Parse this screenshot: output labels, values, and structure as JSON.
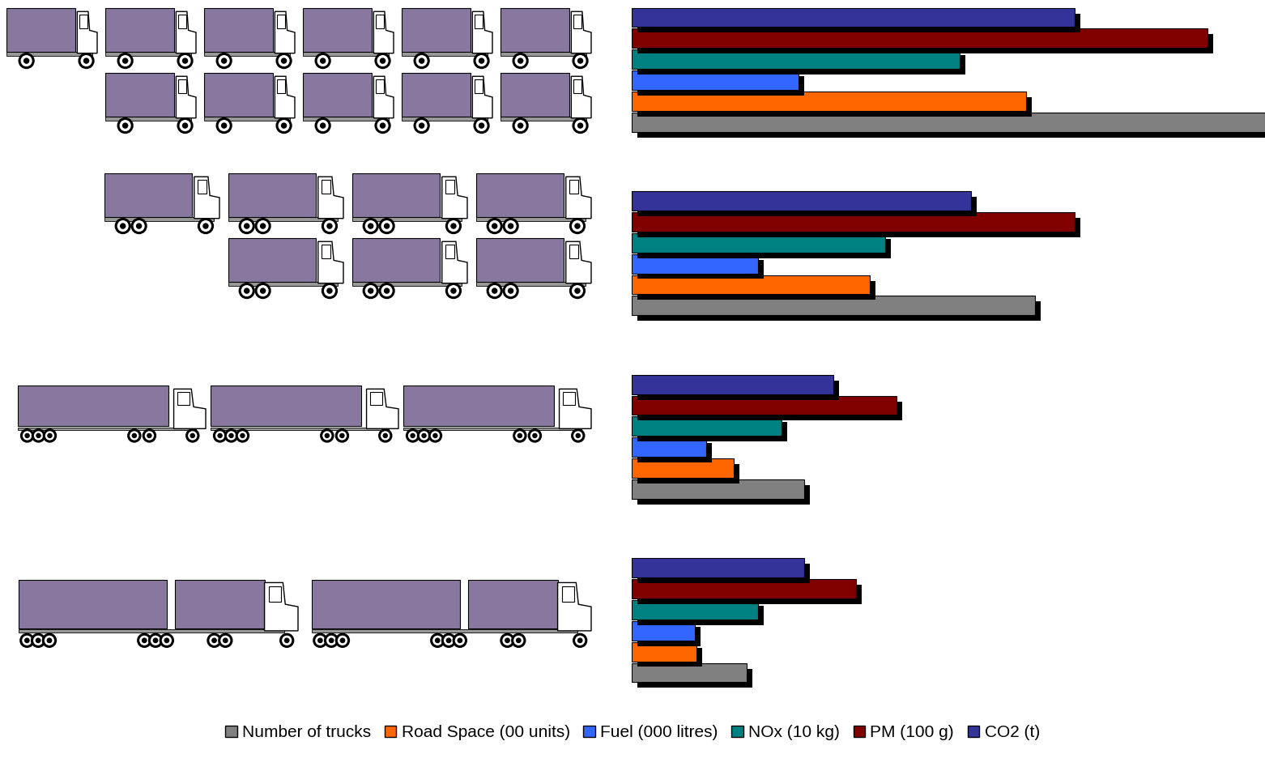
{
  "chart_data": {
    "type": "bar",
    "orientation": "horizontal",
    "categories": [
      null,
      null,
      null,
      null
    ],
    "series": [
      {
        "name": "Number of trucks",
        "color": "#808080",
        "values": [
          11,
          7,
          3,
          2
        ]
      },
      {
        "name": "Road Space (00 units)",
        "color": "#FF6600",
        "values": [
          6.85,
          4.13,
          1.77,
          1.13
        ]
      },
      {
        "name": "Fuel (000 litres)",
        "color": "#3366FF",
        "values": [
          2.9,
          2.2,
          1.3,
          1.1
        ]
      },
      {
        "name": "NOx (10 kg)",
        "color": "#008080",
        "values": [
          5.7,
          4.4,
          2.6,
          2.2
        ]
      },
      {
        "name": "PM (100 g)",
        "color": "#800000",
        "values": [
          10.0,
          7.7,
          4.6,
          3.9
        ]
      },
      {
        "name": "CO2 (t)",
        "color": "#333399",
        "values": [
          7.7,
          5.9,
          3.5,
          3.0
        ]
      }
    ],
    "xlim": [
      0,
      11
    ],
    "xticks": [],
    "tick_labels": false,
    "grid": false,
    "legend": "lower center"
  }
}
